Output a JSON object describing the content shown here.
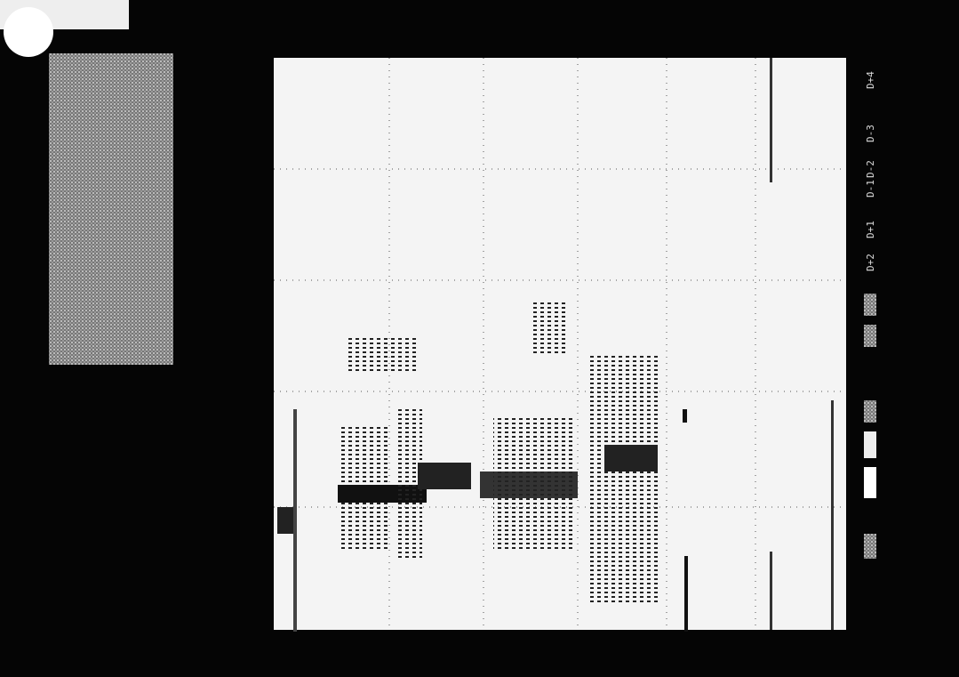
{
  "side_labels": [
    "D+4",
    "D-3",
    "D-2",
    "D-1",
    "D+1",
    "D+2"
  ]
}
